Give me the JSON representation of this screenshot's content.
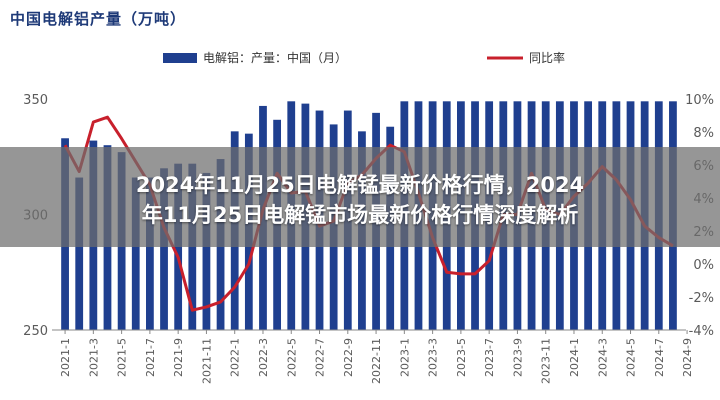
{
  "chart_title": "中国电解铝产量（万吨）",
  "overlay_title": [
    "2024年11月25日电解锰最新价格行情，2024",
    "年11月25日电解锰市场最新价格行情深度解析"
  ],
  "colors": {
    "bar": "#1f3f8f",
    "line": "#c8202c",
    "title": "#1e3a78",
    "axis_text": "#5a5a5a"
  },
  "chart_data": {
    "type": "bar",
    "series": [
      {
        "name": "电解铝：产量：中国（月）",
        "type": "bar",
        "axis": "left",
        "values": [
          333,
          316,
          332,
          330,
          327,
          316,
          316,
          320,
          322,
          322,
          318,
          324,
          336,
          335,
          347,
          341,
          349,
          348,
          345,
          339,
          345,
          336,
          344,
          338,
          349,
          349,
          349,
          349,
          349,
          349,
          349,
          349,
          349,
          349,
          349,
          349,
          349,
          349,
          349,
          349,
          349,
          349,
          349,
          349
        ]
      },
      {
        "name": "同比率",
        "type": "line",
        "axis": "right",
        "values": [
          7.2,
          5.6,
          8.6,
          8.9,
          7.6,
          6.2,
          4.8,
          2.2,
          0.4,
          -2.8,
          -2.6,
          -2.3,
          -1.4,
          0.0,
          3.3,
          5.5,
          4.3,
          4.4,
          2.3,
          2.6,
          4.9,
          5.4,
          6.4,
          7.2,
          6.8,
          4.3,
          1.6,
          -0.5,
          -0.6,
          -0.6,
          0.2,
          3.0,
          3.0,
          5.5,
          3.3,
          3.0,
          4.1,
          4.9,
          5.9,
          5.1,
          3.9,
          2.3,
          1.6,
          1.1
        ]
      }
    ],
    "x_tick_labels": [
      "2021-1",
      "2021-3",
      "2021-5",
      "2021-7",
      "2021-9",
      "2021-11",
      "2022-1",
      "2022-3",
      "2022-5",
      "2022-7",
      "2022-9",
      "2022-11",
      "2023-1",
      "2023-3",
      "2023-5",
      "2023-7",
      "2023-9",
      "2023-11",
      "2024-1",
      "2024-3",
      "2024-5",
      "2024-7",
      "2024-9"
    ],
    "y_left": {
      "min": 250,
      "max": 350,
      "ticks": [
        250,
        300,
        350
      ]
    },
    "y_right": {
      "min": -4,
      "max": 10,
      "ticks": [
        "10%",
        "8%",
        "6%",
        "4%",
        "2%",
        "0%",
        "-2%",
        "-4%"
      ],
      "tick_values": [
        10,
        8,
        6,
        4,
        2,
        0,
        -2,
        -4
      ]
    },
    "legend_position": "top",
    "grid": false
  }
}
